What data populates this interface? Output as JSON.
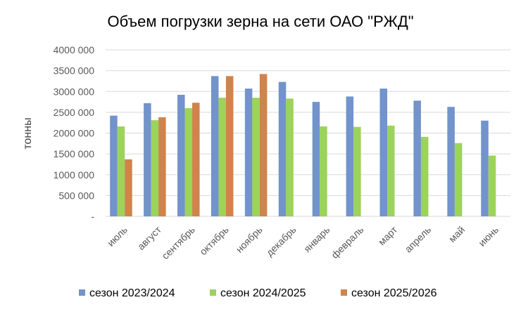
{
  "chart_data": {
    "type": "bar",
    "title": "Объем погрузки зерна на сети ОАО \"РЖД\"",
    "ylabel": "тонны",
    "xlabel": "",
    "ylim": [
      0,
      4000000
    ],
    "y_ticks": [
      {
        "value": 0,
        "label": "-"
      },
      {
        "value": 500000,
        "label": "500 000"
      },
      {
        "value": 1000000,
        "label": "1000 000"
      },
      {
        "value": 1500000,
        "label": "1500 000"
      },
      {
        "value": 2000000,
        "label": "2000 000"
      },
      {
        "value": 2500000,
        "label": "2500 000"
      },
      {
        "value": 3000000,
        "label": "3000 000"
      },
      {
        "value": 3500000,
        "label": "3500 000"
      },
      {
        "value": 4000000,
        "label": "4000 000"
      }
    ],
    "grid": true,
    "legend": "bottom",
    "categories": [
      "июль",
      "август",
      "сентябрь",
      "октябрь",
      "ноябрь",
      "декабрь",
      "январь",
      "февраль",
      "март",
      "апрель",
      "май",
      "июнь"
    ],
    "series": [
      {
        "name": "сезон 2023/2024",
        "color": "#7293CB",
        "values": [
          2420000,
          2720000,
          2920000,
          3370000,
          3070000,
          3230000,
          2750000,
          2880000,
          3070000,
          2780000,
          2630000,
          2300000
        ]
      },
      {
        "name": "сезон 2024/2025",
        "color": "#9BD35B",
        "values": [
          2160000,
          2310000,
          2600000,
          2850000,
          2850000,
          2830000,
          2160000,
          2150000,
          2180000,
          1910000,
          1760000,
          1460000
        ]
      },
      {
        "name": "сезон 2025/2026",
        "color": "#D0834B",
        "values": [
          1370000,
          2380000,
          2730000,
          3370000,
          3420000,
          null,
          null,
          null,
          null,
          null,
          null,
          null
        ]
      }
    ]
  }
}
